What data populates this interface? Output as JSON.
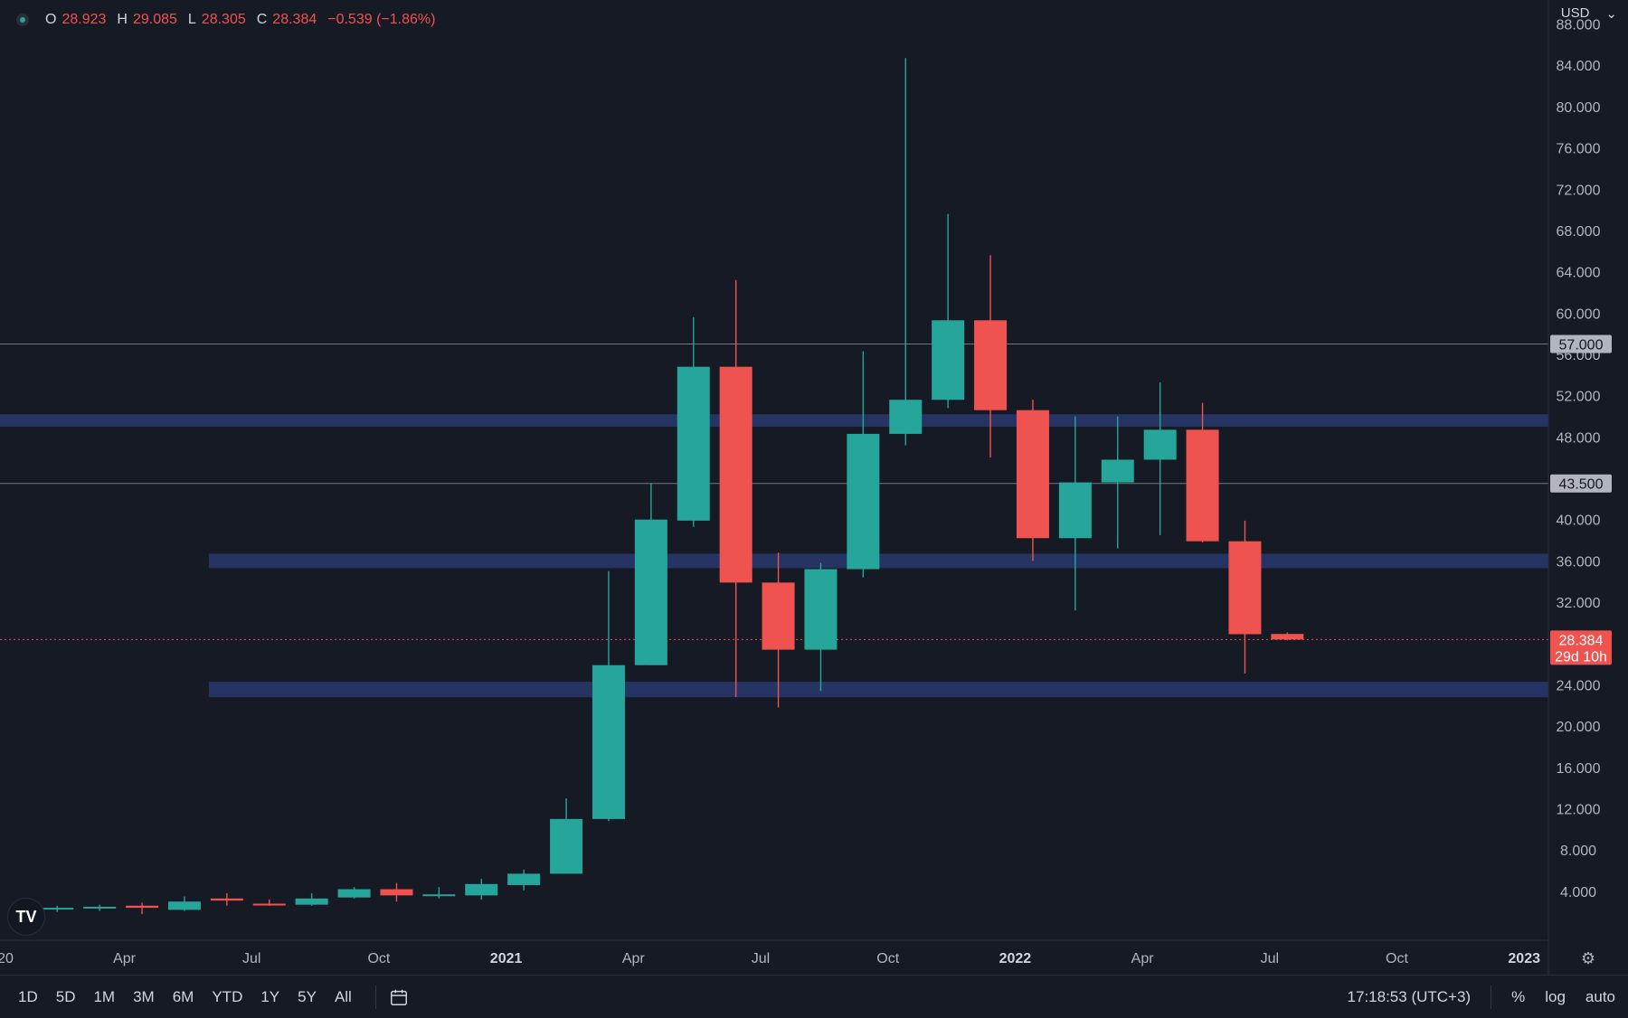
{
  "legend": {
    "o_label": "O",
    "o": "28.923",
    "h_label": "H",
    "h": "29.085",
    "l_label": "L",
    "l": "28.305",
    "c_label": "C",
    "c": "28.384",
    "change": "−0.539 (−1.86%)"
  },
  "currency": "USD",
  "price_labels": {
    "level_1": "57.000",
    "level_2": "43.500",
    "current": "28.384",
    "countdown": "29d 10h"
  },
  "range_buttons": [
    "1D",
    "5D",
    "1M",
    "3M",
    "6M",
    "YTD",
    "1Y",
    "5Y",
    "All"
  ],
  "status": {
    "time": "17:18:53 (UTC+3)",
    "percent": "%",
    "log": "log",
    "auto": "auto"
  },
  "colors": {
    "up": "#26a69a",
    "down": "#ef5350",
    "zone": "#283a6e",
    "background": "#161a25"
  },
  "chart_data": {
    "type": "candlestick",
    "interval": "monthly",
    "y_axis_ticks": [
      "4.000",
      "8.000",
      "12.000",
      "16.000",
      "20.000",
      "24.000",
      "32.000",
      "36.000",
      "40.000",
      "48.000",
      "52.000",
      "56.000",
      "60.000",
      "64.000",
      "68.000",
      "72.000",
      "76.000",
      "80.000",
      "84.000",
      "88.000"
    ],
    "x_axis_ticks": [
      "20",
      "Apr",
      "Jul",
      "Oct",
      "2021",
      "Apr",
      "Jul",
      "Oct",
      "2022",
      "Apr",
      "Jul",
      "Oct",
      "2023"
    ],
    "ylim": [
      0,
      88
    ],
    "candles": [
      {
        "date": "2020-01",
        "open": 2.3,
        "high": 2.6,
        "low": 2.0,
        "close": 2.4
      },
      {
        "date": "2020-02",
        "open": 2.4,
        "high": 2.7,
        "low": 2.1,
        "close": 2.5
      },
      {
        "date": "2020-03",
        "open": 2.6,
        "high": 2.9,
        "low": 1.8,
        "close": 2.4
      },
      {
        "date": "2020-04",
        "open": 2.2,
        "high": 3.5,
        "low": 2.1,
        "close": 3.0
      },
      {
        "date": "2020-05",
        "open": 3.3,
        "high": 3.8,
        "low": 2.6,
        "close": 3.1
      },
      {
        "date": "2020-06",
        "open": 2.8,
        "high": 3.2,
        "low": 2.6,
        "close": 2.7
      },
      {
        "date": "2020-07",
        "open": 2.7,
        "high": 3.8,
        "low": 2.6,
        "close": 3.3
      },
      {
        "date": "2020-08",
        "open": 3.4,
        "high": 4.4,
        "low": 3.3,
        "close": 4.2
      },
      {
        "date": "2020-09",
        "open": 4.2,
        "high": 4.8,
        "low": 3.0,
        "close": 3.6
      },
      {
        "date": "2020-10",
        "open": 3.6,
        "high": 4.4,
        "low": 3.3,
        "close": 3.7
      },
      {
        "date": "2020-11",
        "open": 3.6,
        "high": 5.2,
        "low": 3.2,
        "close": 4.7
      },
      {
        "date": "2020-12",
        "open": 4.6,
        "high": 6.1,
        "low": 4.1,
        "close": 5.7
      },
      {
        "date": "2021-01",
        "open": 5.7,
        "high": 13.0,
        "low": 5.7,
        "close": 11.0
      },
      {
        "date": "2021-02",
        "open": 11.0,
        "high": 35.0,
        "low": 10.8,
        "close": 25.9
      },
      {
        "date": "2021-03",
        "open": 25.9,
        "high": 43.5,
        "low": 25.9,
        "close": 40.0
      },
      {
        "date": "2021-04",
        "open": 39.9,
        "high": 59.6,
        "low": 39.3,
        "close": 54.8
      },
      {
        "date": "2021-05",
        "open": 54.8,
        "high": 63.2,
        "low": 22.8,
        "close": 33.9
      },
      {
        "date": "2021-06",
        "open": 33.9,
        "high": 36.8,
        "low": 21.8,
        "close": 27.4
      },
      {
        "date": "2021-07",
        "open": 27.4,
        "high": 35.8,
        "low": 23.4,
        "close": 35.2
      },
      {
        "date": "2021-08",
        "open": 35.2,
        "high": 56.3,
        "low": 34.4,
        "close": 48.3
      },
      {
        "date": "2021-09",
        "open": 48.3,
        "high": 84.7,
        "low": 47.2,
        "close": 51.6
      },
      {
        "date": "2021-10",
        "open": 51.6,
        "high": 69.6,
        "low": 50.8,
        "close": 59.3
      },
      {
        "date": "2021-11",
        "open": 59.3,
        "high": 65.6,
        "low": 46.0,
        "close": 50.6
      },
      {
        "date": "2021-12",
        "open": 50.6,
        "high": 51.6,
        "low": 36.0,
        "close": 38.2
      },
      {
        "date": "2022-01",
        "open": 38.2,
        "high": 50.0,
        "low": 31.2,
        "close": 43.6
      },
      {
        "date": "2022-02",
        "open": 43.6,
        "high": 50.0,
        "low": 37.2,
        "close": 45.8
      },
      {
        "date": "2022-03",
        "open": 45.8,
        "high": 53.3,
        "low": 38.5,
        "close": 48.7
      },
      {
        "date": "2022-04",
        "open": 48.7,
        "high": 51.3,
        "low": 37.8,
        "close": 37.9
      },
      {
        "date": "2022-05",
        "open": 37.9,
        "high": 39.9,
        "low": 25.1,
        "close": 28.9
      },
      {
        "date": "2022-06",
        "open": 28.923,
        "high": 29.085,
        "low": 28.305,
        "close": 28.384
      }
    ],
    "horizontal_lines": [
      57.0,
      43.5
    ],
    "zones": [
      {
        "from": 49.0,
        "to": 50.2,
        "start": "2020-01"
      },
      {
        "from": 35.3,
        "to": 36.7,
        "start": "2020-05"
      },
      {
        "from": 22.8,
        "to": 24.3,
        "start": "2020-05"
      }
    ],
    "current_price": 28.384
  }
}
